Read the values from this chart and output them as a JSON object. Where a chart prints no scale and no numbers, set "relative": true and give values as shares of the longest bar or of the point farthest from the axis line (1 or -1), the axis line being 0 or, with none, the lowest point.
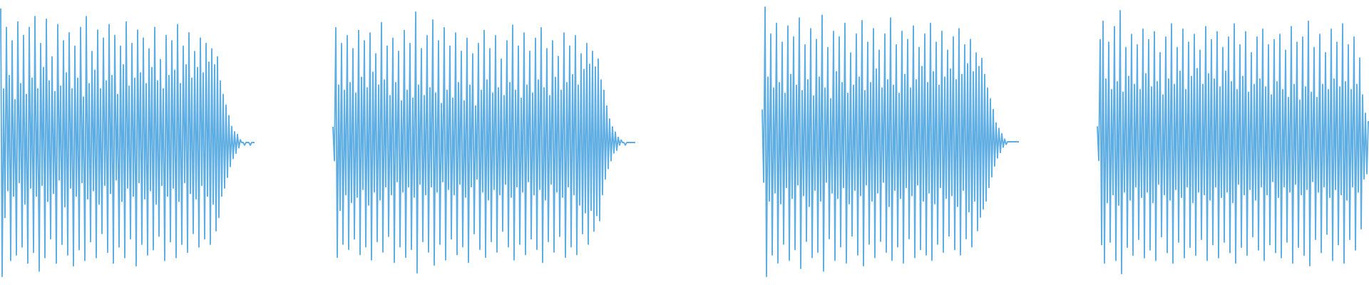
{
  "chart_data": [
    {
      "type": "line",
      "relative": true,
      "color": "#5dade2",
      "categories": [
        null,
        null,
        null,
        null,
        null,
        null,
        null,
        null,
        null,
        null,
        null,
        null,
        null,
        null,
        null,
        null,
        null,
        null,
        null,
        null,
        null,
        null,
        null,
        null,
        null,
        null,
        null,
        null,
        null,
        null,
        null,
        null,
        null,
        null,
        null,
        null,
        null,
        null,
        null,
        null,
        null,
        null,
        null,
        null,
        null,
        null,
        null,
        null,
        null,
        null,
        null,
        null,
        null,
        null,
        null,
        null,
        null,
        null,
        null,
        null,
        null,
        null,
        null,
        null,
        null,
        null,
        null,
        null,
        null,
        null,
        null,
        null,
        null,
        null,
        null,
        null,
        null,
        null,
        null,
        null,
        null,
        null,
        null,
        null,
        null,
        null,
        null,
        null,
        null,
        null,
        null,
        null,
        null,
        null,
        null,
        null,
        null,
        null,
        null,
        null,
        null,
        null,
        null,
        null,
        null,
        null,
        null,
        null,
        null,
        null,
        null,
        null,
        null,
        null,
        null,
        null,
        null,
        null,
        null,
        null,
        null,
        null,
        null,
        null,
        null,
        null,
        null,
        null,
        null,
        null,
        null,
        null,
        null,
        null,
        null,
        null,
        null,
        null,
        null,
        null,
        null,
        null,
        null,
        null,
        null,
        null,
        null,
        null,
        null,
        null,
        null,
        null,
        null,
        null,
        null,
        null,
        null,
        null,
        null,
        null,
        null,
        null,
        null,
        null,
        null,
        null,
        null,
        null,
        null,
        null,
        null,
        null,
        null,
        null,
        null,
        null,
        null,
        null,
        null
      ],
      "values": [
        1.0,
        0.0,
        0.7,
        0.22,
        0.93,
        0.32,
        0.75,
        0.06,
        0.88,
        0.3,
        0.66,
        0.08,
        0.95,
        0.35,
        0.72,
        0.11,
        0.9,
        0.27,
        0.68,
        0.05,
        0.93,
        0.33,
        0.74,
        0.09,
        0.97,
        0.3,
        0.7,
        0.02,
        0.87,
        0.34,
        0.78,
        0.07,
        0.96,
        0.28,
        0.73,
        0.14,
        0.82,
        0.31,
        0.69,
        0.05,
        0.94,
        0.36,
        0.71,
        0.12,
        0.88,
        0.26,
        0.76,
        0.08,
        0.91,
        0.33,
        0.7,
        0.04,
        0.86,
        0.3,
        0.74,
        0.1,
        0.93,
        0.35,
        0.67,
        0.06,
        0.97,
        0.29,
        0.72,
        0.13,
        0.84,
        0.32,
        0.77,
        0.07,
        0.92,
        0.27,
        0.7,
        0.16,
        0.89,
        0.34,
        0.73,
        0.09,
        0.94,
        0.31,
        0.75,
        0.05,
        0.9,
        0.36,
        0.68,
        0.11,
        0.86,
        0.28,
        0.79,
        0.07,
        0.95,
        0.33,
        0.71,
        0.14,
        0.87,
        0.3,
        0.74,
        0.04,
        0.92,
        0.35,
        0.76,
        0.12,
        0.89,
        0.29,
        0.72,
        0.08,
        0.85,
        0.32,
        0.78,
        0.1,
        0.93,
        0.27,
        0.73,
        0.15,
        0.81,
        0.34,
        0.7,
        0.06,
        0.9,
        0.3,
        0.75,
        0.13,
        0.88,
        0.33,
        0.77,
        0.07,
        0.94,
        0.28,
        0.72,
        0.12,
        0.86,
        0.35,
        0.79,
        0.09,
        0.91,
        0.31,
        0.74,
        0.16,
        0.84,
        0.29,
        0.78,
        0.11,
        0.89,
        0.34,
        0.76,
        0.14,
        0.87,
        0.3,
        0.8,
        0.12,
        0.85,
        0.27,
        0.79,
        0.17,
        0.82,
        0.22,
        0.73,
        0.3,
        0.68,
        0.33,
        0.64,
        0.37,
        0.6,
        0.41,
        0.56,
        0.44,
        0.54,
        0.46,
        0.53,
        0.48,
        0.51,
        0.5,
        0.5,
        0.49,
        0.5,
        0.5,
        0.5,
        0.49,
        0.5,
        0.5,
        0.5
      ]
    },
    {
      "type": "line",
      "relative": true,
      "color": "#5dade2",
      "categories": [
        null,
        null,
        null,
        null,
        null,
        null,
        null,
        null,
        null,
        null,
        null,
        null,
        null,
        null,
        null,
        null,
        null,
        null,
        null,
        null,
        null,
        null,
        null,
        null,
        null,
        null,
        null,
        null,
        null,
        null,
        null,
        null,
        null,
        null,
        null,
        null,
        null,
        null,
        null,
        null,
        null,
        null,
        null,
        null,
        null,
        null,
        null,
        null,
        null,
        null,
        null,
        null,
        null,
        null,
        null,
        null,
        null,
        null,
        null,
        null,
        null,
        null,
        null,
        null,
        null,
        null,
        null,
        null,
        null,
        null,
        null,
        null,
        null,
        null,
        null,
        null,
        null,
        null,
        null,
        null,
        null,
        null,
        null,
        null,
        null,
        null,
        null,
        null,
        null,
        null,
        null,
        null,
        null,
        null,
        null,
        null,
        null,
        null,
        null,
        null,
        null,
        null,
        null,
        null,
        null,
        null,
        null,
        null,
        null,
        null,
        null,
        null,
        null,
        null,
        null,
        null,
        null,
        null,
        null,
        null,
        null,
        null,
        null,
        null,
        null,
        null,
        null,
        null,
        null,
        null,
        null,
        null,
        null,
        null,
        null,
        null,
        null,
        null,
        null,
        null,
        null,
        null,
        null,
        null,
        null,
        null,
        null,
        null,
        null,
        null,
        null,
        null,
        null,
        null,
        null,
        null,
        null,
        null,
        null,
        null,
        null,
        null,
        null,
        null,
        null,
        null,
        null,
        null,
        null,
        null,
        null,
        null,
        null,
        null,
        null,
        null,
        null,
        null,
        null,
        null,
        null,
        null,
        null,
        null,
        null,
        null,
        null,
        null,
        null,
        null,
        null,
        null,
        null,
        null,
        null,
        null,
        null,
        null,
        null,
        null,
        null,
        null,
        null,
        null,
        null,
        null,
        null,
        null,
        null,
        null,
        null,
        null,
        null
      ],
      "values": [
        0.56,
        0.43,
        0.94,
        0.06,
        0.72,
        0.24,
        0.88,
        0.11,
        0.7,
        0.3,
        0.91,
        0.09,
        0.73,
        0.27,
        0.86,
        0.13,
        0.69,
        0.29,
        0.93,
        0.07,
        0.75,
        0.32,
        0.89,
        0.1,
        0.71,
        0.26,
        0.92,
        0.05,
        0.77,
        0.31,
        0.84,
        0.12,
        0.72,
        0.28,
        0.96,
        0.08,
        0.74,
        0.33,
        0.87,
        0.14,
        0.68,
        0.3,
        0.9,
        0.04,
        0.73,
        0.35,
        0.85,
        0.1,
        0.66,
        0.31,
        0.93,
        0.06,
        0.7,
        0.33,
        0.88,
        0.09,
        0.67,
        0.29,
        1.0,
        0.0,
        0.72,
        0.34,
        0.86,
        0.12,
        0.68,
        0.3,
        0.91,
        0.08,
        0.71,
        0.33,
        0.97,
        0.03,
        0.69,
        0.31,
        0.89,
        0.11,
        0.65,
        0.35,
        0.94,
        0.05,
        0.7,
        0.32,
        0.87,
        0.13,
        0.67,
        0.3,
        0.92,
        0.07,
        0.73,
        0.34,
        0.85,
        0.1,
        0.66,
        0.29,
        0.9,
        0.04,
        0.72,
        0.33,
        0.84,
        0.15,
        0.64,
        0.36,
        0.88,
        0.09,
        0.7,
        0.31,
        0.93,
        0.06,
        0.74,
        0.28,
        0.86,
        0.12,
        0.69,
        0.32,
        0.91,
        0.08,
        0.71,
        0.3,
        0.82,
        0.16,
        0.68,
        0.34,
        0.89,
        0.1,
        0.73,
        0.29,
        0.95,
        0.05,
        0.7,
        0.33,
        0.87,
        0.11,
        0.67,
        0.31,
        0.92,
        0.07,
        0.72,
        0.35,
        0.85,
        0.13,
        0.69,
        0.3,
        0.9,
        0.09,
        0.74,
        0.32,
        0.94,
        0.04,
        0.71,
        0.28,
        0.86,
        0.12,
        0.68,
        0.34,
        0.89,
        0.08,
        0.75,
        0.31,
        0.83,
        0.14,
        0.7,
        0.29,
        0.92,
        0.06,
        0.73,
        0.33,
        0.87,
        0.1,
        0.76,
        0.3,
        0.91,
        0.07,
        0.72,
        0.26,
        0.84,
        0.15,
        0.78,
        0.23,
        0.88,
        0.11,
        0.8,
        0.24,
        0.85,
        0.16,
        0.79,
        0.22,
        0.82,
        0.2,
        0.74,
        0.3,
        0.7,
        0.36,
        0.64,
        0.4,
        0.59,
        0.43,
        0.56,
        0.46,
        0.54,
        0.47,
        0.52,
        0.49,
        0.51,
        0.5,
        0.5,
        0.49,
        0.5,
        0.5,
        0.5,
        0.5,
        0.5,
        0.5,
        0.5
      ]
    },
    {
      "type": "line",
      "relative": true,
      "color": "#5dade2",
      "categories": [
        null,
        null,
        null,
        null,
        null,
        null,
        null,
        null,
        null,
        null,
        null,
        null,
        null,
        null,
        null,
        null,
        null,
        null,
        null,
        null,
        null,
        null,
        null,
        null,
        null,
        null,
        null,
        null,
        null,
        null,
        null,
        null,
        null,
        null,
        null,
        null,
        null,
        null,
        null,
        null,
        null,
        null,
        null,
        null,
        null,
        null,
        null,
        null,
        null,
        null,
        null,
        null,
        null,
        null,
        null,
        null,
        null,
        null,
        null,
        null,
        null,
        null,
        null,
        null,
        null,
        null,
        null,
        null,
        null,
        null,
        null,
        null,
        null,
        null,
        null,
        null,
        null,
        null,
        null,
        null,
        null,
        null,
        null,
        null,
        null,
        null,
        null,
        null,
        null,
        null,
        null,
        null,
        null,
        null,
        null,
        null,
        null,
        null,
        null,
        null,
        null,
        null,
        null,
        null,
        null,
        null,
        null,
        null,
        null,
        null,
        null,
        null,
        null,
        null,
        null,
        null,
        null,
        null,
        null,
        null,
        null,
        null,
        null,
        null,
        null,
        null,
        null,
        null,
        null,
        null,
        null,
        null,
        null,
        null,
        null,
        null,
        null,
        null,
        null,
        null,
        null,
        null,
        null,
        null,
        null,
        null,
        null,
        null,
        null,
        null,
        null,
        null,
        null,
        null,
        null,
        null,
        null,
        null,
        null,
        null,
        null,
        null,
        null,
        null,
        null,
        null,
        null,
        null,
        null,
        null,
        null,
        null,
        null,
        null,
        null,
        null,
        null,
        null,
        null,
        null,
        null
      ],
      "values": [
        0.62,
        0.35,
        1.0,
        0.0,
        0.74,
        0.28,
        0.9,
        0.08,
        0.7,
        0.31,
        0.94,
        0.05,
        0.72,
        0.27,
        0.87,
        0.12,
        0.68,
        0.33,
        0.93,
        0.06,
        0.75,
        0.29,
        0.89,
        0.1,
        0.71,
        0.34,
        0.96,
        0.03,
        0.69,
        0.3,
        0.86,
        0.13,
        0.73,
        0.26,
        0.92,
        0.07,
        0.67,
        0.32,
        0.88,
        0.09,
        0.74,
        0.28,
        0.97,
        0.02,
        0.7,
        0.35,
        0.85,
        0.14,
        0.66,
        0.31,
        0.91,
        0.06,
        0.76,
        0.29,
        0.89,
        0.11,
        0.72,
        0.33,
        0.94,
        0.05,
        0.68,
        0.27,
        0.83,
        0.15,
        0.71,
        0.32,
        0.9,
        0.08,
        0.74,
        0.3,
        0.95,
        0.04,
        0.69,
        0.34,
        0.87,
        0.12,
        0.72,
        0.28,
        0.92,
        0.07,
        0.77,
        0.31,
        0.84,
        0.13,
        0.7,
        0.35,
        0.9,
        0.09,
        0.73,
        0.26,
        0.96,
        0.06,
        0.71,
        0.32,
        0.86,
        0.11,
        0.68,
        0.29,
        0.91,
        0.05,
        0.75,
        0.33,
        0.88,
        0.14,
        0.7,
        0.3,
        0.93,
        0.07,
        0.73,
        0.34,
        0.85,
        0.1,
        0.78,
        0.28,
        0.9,
        0.08,
        0.72,
        0.31,
        0.94,
        0.06,
        0.76,
        0.27,
        0.87,
        0.12,
        0.71,
        0.33,
        0.91,
        0.09,
        0.74,
        0.29,
        0.84,
        0.15,
        0.77,
        0.3,
        0.89,
        0.1,
        0.73,
        0.26,
        0.92,
        0.08,
        0.75,
        0.32,
        0.86,
        0.14,
        0.79,
        0.24,
        0.88,
        0.11,
        0.76,
        0.28,
        0.83,
        0.17,
        0.78,
        0.22,
        0.81,
        0.25,
        0.75,
        0.28,
        0.7,
        0.33,
        0.66,
        0.37,
        0.62,
        0.41,
        0.57,
        0.44,
        0.55,
        0.46,
        0.53,
        0.48,
        0.51,
        0.49,
        0.5,
        0.5,
        0.5,
        0.5,
        0.5,
        0.5,
        0.5,
        0.5,
        0.5
      ]
    },
    {
      "type": "line",
      "relative": true,
      "color": "#5dade2",
      "categories": [
        null,
        null,
        null,
        null,
        null,
        null,
        null,
        null,
        null,
        null,
        null,
        null,
        null,
        null,
        null,
        null,
        null,
        null,
        null,
        null,
        null,
        null,
        null,
        null,
        null,
        null,
        null,
        null,
        null,
        null,
        null,
        null,
        null,
        null,
        null,
        null,
        null,
        null,
        null,
        null,
        null,
        null,
        null,
        null,
        null,
        null,
        null,
        null,
        null,
        null,
        null,
        null,
        null,
        null,
        null,
        null,
        null,
        null,
        null,
        null,
        null,
        null,
        null,
        null,
        null,
        null,
        null,
        null,
        null,
        null,
        null,
        null,
        null,
        null,
        null,
        null,
        null,
        null,
        null,
        null,
        null,
        null,
        null,
        null,
        null,
        null,
        null,
        null,
        null,
        null,
        null,
        null,
        null,
        null,
        null,
        null,
        null,
        null,
        null,
        null,
        null,
        null,
        null,
        null,
        null,
        null,
        null,
        null,
        null,
        null,
        null,
        null,
        null,
        null,
        null,
        null,
        null,
        null,
        null,
        null,
        null,
        null,
        null,
        null,
        null,
        null,
        null,
        null,
        null,
        null,
        null,
        null,
        null,
        null,
        null,
        null,
        null,
        null,
        null,
        null,
        null,
        null,
        null,
        null,
        null,
        null,
        null,
        null,
        null,
        null,
        null,
        null,
        null,
        null,
        null,
        null,
        null,
        null,
        null,
        null,
        null,
        null,
        null,
        null,
        null,
        null,
        null,
        null,
        null,
        null,
        null,
        null,
        null,
        null,
        null,
        null,
        null,
        null,
        null,
        null,
        null,
        null,
        null,
        null,
        null,
        null,
        null,
        null,
        null,
        null,
        null
      ],
      "values": [
        0.56,
        0.43,
        0.89,
        0.11,
        0.96,
        0.04,
        0.74,
        0.27,
        0.88,
        0.12,
        0.7,
        0.3,
        0.94,
        0.05,
        0.73,
        0.26,
        1.0,
        0.0,
        0.69,
        0.31,
        0.86,
        0.1,
        0.75,
        0.28,
        0.91,
        0.07,
        0.72,
        0.33,
        0.87,
        0.13,
        0.7,
        0.29,
        0.93,
        0.06,
        0.76,
        0.31,
        0.89,
        0.09,
        0.71,
        0.27,
        0.92,
        0.05,
        0.73,
        0.34,
        0.84,
        0.14,
        0.68,
        0.3,
        0.9,
        0.08,
        0.74,
        0.28,
        0.95,
        0.04,
        0.72,
        0.32,
        0.86,
        0.12,
        0.77,
        0.29,
        0.93,
        0.06,
        0.7,
        0.33,
        0.88,
        0.1,
        0.75,
        0.27,
        0.91,
        0.07,
        0.78,
        0.31,
        0.85,
        0.13,
        0.72,
        0.3,
        0.94,
        0.05,
        0.76,
        0.28,
        0.89,
        0.11,
        0.74,
        0.33,
        0.92,
        0.06,
        0.71,
        0.29,
        0.86,
        0.12,
        0.77,
        0.31,
        0.9,
        0.08,
        0.73,
        0.27,
        0.95,
        0.04,
        0.7,
        0.34,
        0.87,
        0.1,
        0.75,
        0.3,
        0.92,
        0.07,
        0.69,
        0.32,
        0.84,
        0.14,
        0.72,
        0.28,
        0.9,
        0.09,
        0.74,
        0.33,
        0.93,
        0.05,
        0.71,
        0.3,
        0.87,
        0.11,
        0.68,
        0.35,
        0.89,
        0.08,
        0.73,
        0.29,
        0.91,
        0.06,
        0.7,
        0.33,
        0.85,
        0.12,
        0.67,
        0.31,
        0.94,
        0.04,
        0.72,
        0.34,
        0.88,
        0.1,
        0.66,
        0.3,
        0.9,
        0.07,
        0.71,
        0.32,
        0.96,
        0.03,
        0.69,
        0.35,
        0.86,
        0.13,
        0.67,
        0.31,
        0.91,
        0.08,
        0.72,
        0.33,
        0.84,
        0.15,
        0.7,
        0.29,
        0.93,
        0.05,
        0.74,
        0.32,
        0.88,
        0.11,
        0.71,
        0.3,
        0.95,
        0.04,
        0.73,
        0.28,
        0.87,
        0.13,
        0.7,
        0.33,
        0.9,
        0.09,
        0.72,
        0.31,
        0.82,
        0.17,
        0.68,
        0.36,
        0.61,
        0.38,
        0.58
      ]
    }
  ]
}
